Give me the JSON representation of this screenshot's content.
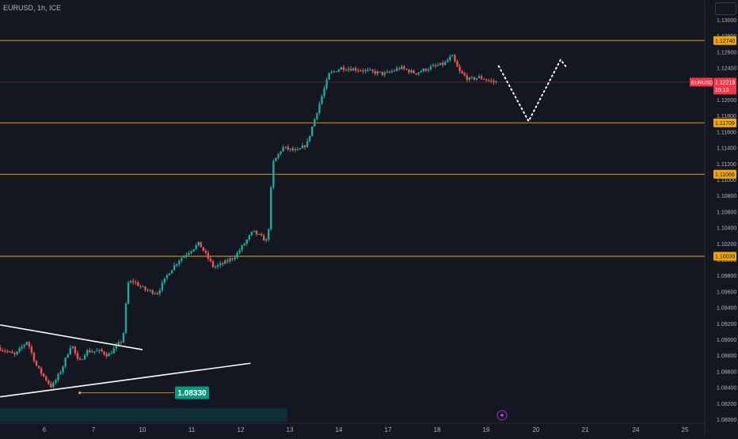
{
  "header": {
    "symbol_title": "EURUSD, 1h, ICE"
  },
  "colors": {
    "background": "#131722",
    "up_candle": "#26a69a",
    "down_candle": "#ef5350",
    "level_line": "#f7a600",
    "trendline": "#ffffff",
    "price_tag": "#f23645",
    "label_green": "#089981"
  },
  "chart_data": {
    "type": "candlestick",
    "symbol": "EURUSD",
    "timeframe": "1h",
    "exchange": "ICE",
    "ylim": [
      1.0795,
      1.1295
    ],
    "y_ticks": [
      "1.13000",
      "1.12800",
      "1.12600",
      "1.12400",
      "1.12200",
      "1.12000",
      "1.11800",
      "1.11600",
      "1.11400",
      "1.11200",
      "1.11000",
      "1.10800",
      "1.10600",
      "1.10400",
      "1.10200",
      "1.10000",
      "1.09800",
      "1.09600",
      "1.09400",
      "1.09200",
      "1.09000",
      "1.08800",
      "1.08600",
      "1.08400",
      "1.08200",
      "1.08000"
    ],
    "x_ticks": [
      {
        "label": "6",
        "pos": 0
      },
      {
        "label": "7",
        "pos": 1
      },
      {
        "label": "10",
        "pos": 2
      },
      {
        "label": "11",
        "pos": 3
      },
      {
        "label": "12",
        "pos": 4
      },
      {
        "label": "13",
        "pos": 5
      },
      {
        "label": "14",
        "pos": 6
      },
      {
        "label": "17",
        "pos": 7
      },
      {
        "label": "18",
        "pos": 8
      },
      {
        "label": "19",
        "pos": 9
      },
      {
        "label": "20",
        "pos": 10
      },
      {
        "label": "21",
        "pos": 11
      },
      {
        "label": "24",
        "pos": 12
      },
      {
        "label": "25",
        "pos": 13
      }
    ],
    "horizontal_levels": [
      {
        "price": 1.1274,
        "label": "1.12740"
      },
      {
        "price": 1.11709,
        "label": "1.11709"
      },
      {
        "price": 1.11066,
        "label": "1.11066"
      },
      {
        "price": 1.10039,
        "label": "1.10039"
      }
    ],
    "current_price": {
      "symbol": "EURUSD",
      "price": 1.12219,
      "label": "1.12219",
      "countdown": "15:13"
    },
    "low_marker": {
      "price": 1.0833,
      "label": "1.08330",
      "pos": 0.72
    },
    "trendlines": [
      {
        "name": "upper",
        "from": {
          "pos": -0.9,
          "price": 1.0918
        },
        "to": {
          "pos": 2.0,
          "price": 1.0887
        }
      },
      {
        "name": "lower",
        "from": {
          "pos": -0.9,
          "price": 1.0828
        },
        "to": {
          "pos": 4.2,
          "price": 1.087
        }
      }
    ],
    "projection_path": [
      {
        "pos": 9.25,
        "price": 1.1242
      },
      {
        "pos": 9.85,
        "price": 1.1173
      },
      {
        "pos": 10.5,
        "price": 1.125
      },
      {
        "pos": 10.6,
        "price": 1.1242
      }
    ],
    "candle_path": [
      {
        "pos": -0.9,
        "price": 1.089
      },
      {
        "pos": -0.55,
        "price": 1.088
      },
      {
        "pos": -0.3,
        "price": 1.0898
      },
      {
        "pos": -0.1,
        "price": 1.0865
      },
      {
        "pos": 0.2,
        "price": 1.084
      },
      {
        "pos": 0.4,
        "price": 1.0862
      },
      {
        "pos": 0.6,
        "price": 1.0895
      },
      {
        "pos": 0.75,
        "price": 1.087
      },
      {
        "pos": 0.9,
        "price": 1.0885
      },
      {
        "pos": 1.2,
        "price": 1.0885
      },
      {
        "pos": 1.35,
        "price": 1.088
      },
      {
        "pos": 1.5,
        "price": 1.089
      },
      {
        "pos": 1.65,
        "price": 1.09
      },
      {
        "pos": 1.75,
        "price": 1.097
      },
      {
        "pos": 1.85,
        "price": 1.0973
      },
      {
        "pos": 2.1,
        "price": 1.0962
      },
      {
        "pos": 2.35,
        "price": 1.0958
      },
      {
        "pos": 2.6,
        "price": 1.0985
      },
      {
        "pos": 2.8,
        "price": 1.1
      },
      {
        "pos": 3.2,
        "price": 1.102
      },
      {
        "pos": 3.5,
        "price": 1.099
      },
      {
        "pos": 3.7,
        "price": 1.0995
      },
      {
        "pos": 3.95,
        "price": 1.1005
      },
      {
        "pos": 4.3,
        "price": 1.1035
      },
      {
        "pos": 4.6,
        "price": 1.1022
      },
      {
        "pos": 4.7,
        "price": 1.112
      },
      {
        "pos": 4.9,
        "price": 1.114
      },
      {
        "pos": 5.2,
        "price": 1.1135
      },
      {
        "pos": 5.4,
        "price": 1.1145
      },
      {
        "pos": 5.6,
        "price": 1.1185
      },
      {
        "pos": 5.85,
        "price": 1.1232
      },
      {
        "pos": 6.1,
        "price": 1.124
      },
      {
        "pos": 6.4,
        "price": 1.1238
      },
      {
        "pos": 6.7,
        "price": 1.1235
      },
      {
        "pos": 7.0,
        "price": 1.1232
      },
      {
        "pos": 7.3,
        "price": 1.124
      },
      {
        "pos": 7.6,
        "price": 1.1233
      },
      {
        "pos": 7.9,
        "price": 1.124
      },
      {
        "pos": 8.2,
        "price": 1.1245
      },
      {
        "pos": 8.35,
        "price": 1.1255
      },
      {
        "pos": 8.5,
        "price": 1.1235
      },
      {
        "pos": 8.7,
        "price": 1.1225
      },
      {
        "pos": 8.9,
        "price": 1.1228
      },
      {
        "pos": 9.2,
        "price": 1.1222
      }
    ],
    "grid": false,
    "legend": "none"
  }
}
